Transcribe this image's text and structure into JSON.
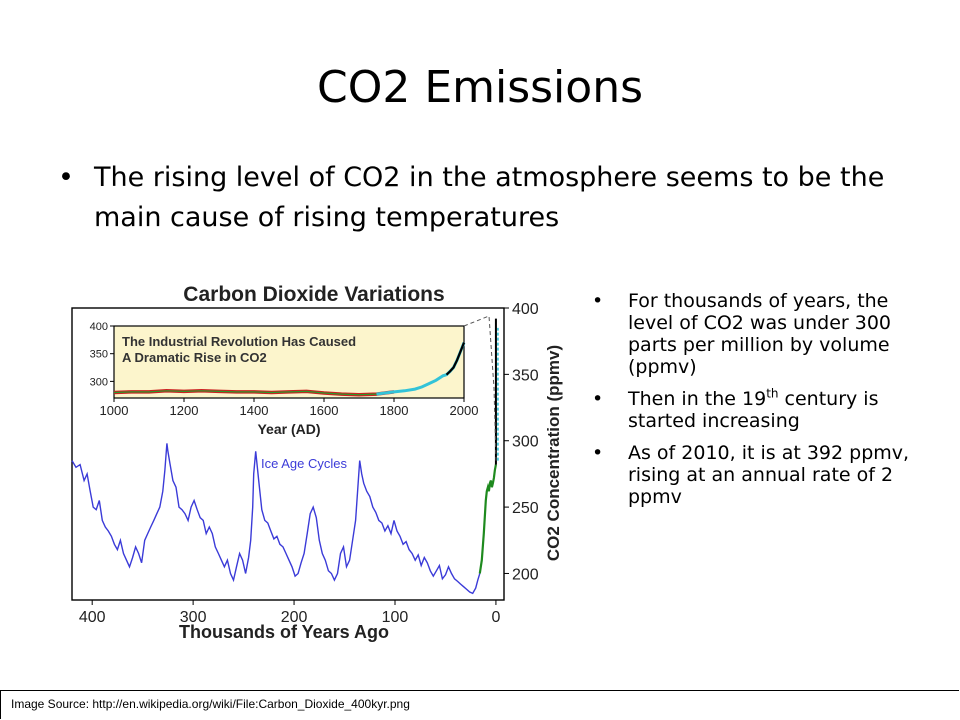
{
  "slide": {
    "title": "CO2 Emissions",
    "main_bullet": "The rising level of CO2 in the atmosphere seems to be the main cause of rising temperatures",
    "side_bullets": [
      {
        "text": "For thousands of years, the level of CO2 was under 300 parts per million by volume (ppmv)"
      },
      {
        "before": "Then in the 19",
        "sup": "th",
        "after": " century is started increasing"
      },
      {
        "text": "As of 2010, it is at 392 ppmv, rising at an annual rate of 2 ppmv"
      }
    ],
    "source": "Image Source: http://en.wikipedia.org/wiki/File:Carbon_Dioxide_400kyr.png"
  },
  "chart_data": [
    {
      "type": "line",
      "title": "Carbon Dioxide Variations",
      "xlabel": "Thousands of Years Ago",
      "ylabel": "CO2 Concentration (ppmv)",
      "xlim": [
        420,
        -8
      ],
      "ylim": [
        180,
        400
      ],
      "x_ticks": [
        400,
        300,
        200,
        100,
        0
      ],
      "y_ticks": [
        200,
        250,
        300,
        350,
        400
      ],
      "annotation": "Ice Age Cycles",
      "colors": {
        "ice_core": "#3b3bd8",
        "recent": "#1e8a1e",
        "modern": "#000000"
      },
      "series": [
        {
          "x": [
            420,
            416,
            412,
            408,
            405,
            402,
            399,
            396,
            393,
            390,
            387,
            384,
            381,
            378,
            375,
            372,
            369,
            366,
            363,
            360,
            357,
            354,
            351,
            348,
            345,
            342,
            339,
            336,
            333,
            330,
            328,
            326,
            325,
            323,
            320,
            317,
            314,
            311,
            308,
            305,
            302,
            299,
            296,
            293,
            290,
            287,
            284,
            281,
            278,
            275,
            272,
            269,
            266,
            263,
            260,
            257,
            254,
            251,
            248,
            245,
            243,
            241,
            240,
            238,
            235,
            232,
            229,
            226,
            223,
            220,
            217,
            214,
            211,
            208,
            205,
            202,
            199,
            196,
            193,
            190,
            187,
            184,
            181,
            178,
            175,
            172,
            169,
            166,
            163,
            160,
            157,
            154,
            151,
            148,
            145,
            142,
            139,
            137,
            135,
            133,
            131,
            128,
            125,
            122,
            119,
            116,
            113,
            110,
            107,
            104,
            101,
            98,
            95,
            92,
            89,
            86,
            83,
            80,
            77,
            74,
            71,
            68,
            65,
            62,
            59,
            56,
            53,
            50,
            47,
            44,
            41,
            38,
            35,
            32,
            29,
            26,
            23,
            20,
            18,
            16
          ],
          "values": [
            285,
            280,
            282,
            270,
            275,
            262,
            250,
            248,
            255,
            240,
            235,
            232,
            228,
            222,
            218,
            225,
            215,
            210,
            205,
            212,
            220,
            215,
            208,
            225,
            230,
            235,
            240,
            245,
            250,
            262,
            278,
            298,
            292,
            283,
            270,
            265,
            250,
            248,
            245,
            240,
            250,
            255,
            248,
            242,
            240,
            230,
            235,
            230,
            220,
            215,
            210,
            205,
            210,
            200,
            195,
            205,
            215,
            210,
            200,
            212,
            225,
            250,
            275,
            292,
            270,
            248,
            240,
            238,
            232,
            226,
            228,
            222,
            220,
            215,
            210,
            205,
            198,
            200,
            208,
            215,
            230,
            245,
            250,
            242,
            225,
            215,
            210,
            202,
            200,
            195,
            200,
            215,
            220,
            205,
            210,
            225,
            240,
            262,
            285,
            275,
            268,
            262,
            258,
            250,
            246,
            240,
            238,
            232,
            236,
            230,
            240,
            232,
            228,
            222,
            224,
            218,
            215,
            210,
            214,
            206,
            212,
            208,
            202,
            198,
            202,
            206,
            196,
            199,
            205,
            200,
            196,
            194,
            192,
            190,
            188,
            186,
            185,
            189,
            195,
            200
          ],
          "name": ""
        },
        {
          "x": [
            16,
            14,
            12,
            10,
            9,
            8,
            7,
            6,
            5,
            4,
            3,
            2,
            1,
            0.5,
            0
          ],
          "values": [
            200,
            210,
            230,
            255,
            262,
            265,
            262,
            268,
            270,
            265,
            268,
            272,
            278,
            280,
            282
          ],
          "name": ""
        }
      ]
    },
    {
      "type": "line",
      "title": "The Industrial Revolution Has Caused A Dramatic Rise in CO2",
      "xlabel": "Year (AD)",
      "ylabel": "",
      "xlim": [
        1000,
        2000
      ],
      "ylim": [
        270,
        400
      ],
      "x_ticks": [
        1000,
        1200,
        1400,
        1600,
        1800,
        2000
      ],
      "y_ticks": [
        300,
        350,
        400
      ],
      "series": [
        {
          "x": [
            1000,
            1050,
            1100,
            1150,
            1200,
            1250,
            1300,
            1350,
            1400,
            1450,
            1500,
            1550,
            1600,
            1650,
            1700,
            1750,
            1800,
            1830,
            1860,
            1880,
            1900,
            1920,
            1940,
            1950,
            1960,
            1970,
            1980,
            1990,
            2000
          ],
          "values": [
            280,
            281,
            281,
            283,
            282,
            283,
            282,
            281,
            281,
            280,
            281,
            282,
            279,
            277,
            276,
            277,
            281,
            283,
            286,
            290,
            296,
            302,
            310,
            312,
            318,
            325,
            338,
            354,
            370
          ],
          "name": ""
        }
      ]
    }
  ]
}
